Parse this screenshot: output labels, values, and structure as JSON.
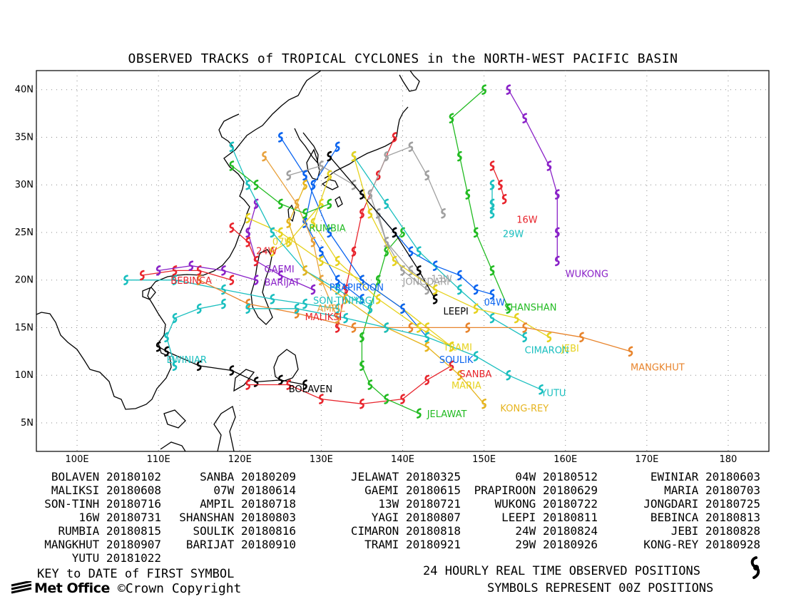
{
  "title": "OBSERVED TRACKS of TROPICAL CYCLONES in the NORTH-WEST PACIFIC BASIN",
  "map": {
    "lon_ticks": [
      "100E",
      "110E",
      "120E",
      "130E",
      "140E",
      "150E",
      "160E",
      "170E",
      "180"
    ],
    "lat_ticks": [
      "40N",
      "35N",
      "30N",
      "25N",
      "20N",
      "15N",
      "10N",
      "5N"
    ],
    "lon_range": [
      95,
      185
    ],
    "lat_range": [
      2,
      42
    ],
    "grid": "dotted"
  },
  "storms": [
    {
      "name": "BOLAVEN",
      "color": "#000000",
      "label_pos": [
        126,
        8.2
      ],
      "track": [
        [
          128,
          9
        ],
        [
          125,
          9.5
        ],
        [
          122,
          9.3
        ],
        [
          119,
          10.5
        ],
        [
          115,
          11
        ],
        [
          111,
          12.5
        ],
        [
          110,
          13
        ]
      ]
    },
    {
      "name": "SANBA",
      "color": "#e8242c",
      "label_pos": [
        147,
        9.8
      ],
      "track": [
        [
          146,
          11
        ],
        [
          143,
          9.5
        ],
        [
          140,
          7.5
        ],
        [
          135,
          7
        ],
        [
          130,
          7.5
        ],
        [
          126,
          9
        ],
        [
          121,
          9
        ]
      ]
    },
    {
      "name": "JELAWAT",
      "color": "#22bb22",
      "label_pos": [
        143,
        5.6
      ],
      "track": [
        [
          142,
          6
        ],
        [
          138,
          7.5
        ],
        [
          136,
          9
        ],
        [
          135,
          11
        ],
        [
          135,
          14
        ],
        [
          136,
          17
        ],
        [
          137,
          20
        ],
        [
          138,
          23
        ],
        [
          140,
          25
        ]
      ]
    },
    {
      "name": "04W",
      "color": "#0a64f0",
      "label_pos": [
        150,
        17.3
      ],
      "track": [
        [
          151,
          18.5
        ],
        [
          149,
          19
        ],
        [
          147,
          20.5
        ],
        [
          144,
          21.5
        ],
        [
          141,
          23
        ],
        [
          139,
          25
        ],
        [
          137,
          27
        ]
      ]
    },
    {
      "name": "EWINIAR",
      "color": "#1abfbf",
      "label_pos": [
        111,
        11.3
      ],
      "track": [
        [
          118,
          17.5
        ],
        [
          115,
          17
        ],
        [
          112,
          16
        ],
        [
          111,
          14
        ],
        [
          112,
          11
        ]
      ]
    },
    {
      "name": "MALIKSI",
      "color": "#e8242c",
      "label_pos": [
        128,
        15.8
      ],
      "track": [
        [
          132,
          15
        ],
        [
          133,
          19
        ],
        [
          134,
          23
        ],
        [
          135,
          27
        ],
        [
          137,
          31
        ],
        [
          139,
          35
        ]
      ]
    },
    {
      "name": "07W",
      "color": "#e6d21e",
      "label_pos": [
        124,
        23.7
      ],
      "track": [
        [
          124,
          23
        ],
        [
          126,
          24
        ],
        [
          128,
          26
        ],
        [
          130,
          28
        ]
      ]
    },
    {
      "name": "GAEMI",
      "color": "#8a22c8",
      "label_pos": [
        123,
        20.8
      ],
      "track": [
        [
          129,
          19
        ],
        [
          125,
          20.5
        ],
        [
          122,
          22
        ],
        [
          121,
          25
        ],
        [
          122,
          28
        ]
      ]
    },
    {
      "name": "PRAPIROON",
      "color": "#0a64f0",
      "label_pos": [
        131,
        18.9
      ],
      "track": [
        [
          135,
          18
        ],
        [
          132,
          20
        ],
        [
          130,
          23
        ],
        [
          128,
          26
        ],
        [
          129,
          30
        ],
        [
          132,
          34
        ]
      ]
    },
    {
      "name": "MARIA",
      "color": "#e6d21e",
      "label_pos": [
        146,
        8.6
      ],
      "track": [
        [
          146,
          13
        ],
        [
          143,
          15
        ],
        [
          140,
          17
        ],
        [
          135,
          20
        ],
        [
          130,
          22
        ],
        [
          125,
          25
        ],
        [
          121,
          26.5
        ]
      ]
    },
    {
      "name": "SON-TINH",
      "color": "#1abfbf",
      "label_pos": [
        129,
        17.5
      ],
      "track": [
        [
          132,
          17
        ],
        [
          128,
          17.5
        ],
        [
          124,
          18
        ],
        [
          118,
          19
        ],
        [
          112,
          20
        ],
        [
          106,
          20
        ]
      ]
    },
    {
      "name": "AMPIL",
      "color": "#e8a23e",
      "label_pos": [
        129.5,
        16.7
      ],
      "track": [
        [
          132,
          16
        ],
        [
          130,
          20
        ],
        [
          129,
          24
        ],
        [
          127,
          28
        ],
        [
          123,
          33
        ]
      ]
    },
    {
      "name": "13W",
      "color": "#a0a0a0",
      "label_pos": [
        143.5,
        19.8
      ],
      "track": [
        [
          143,
          19
        ],
        [
          140,
          21
        ],
        [
          138,
          24
        ],
        [
          136,
          29
        ],
        [
          138,
          33
        ],
        [
          141,
          34
        ],
        [
          143,
          31
        ],
        [
          145,
          27
        ]
      ]
    },
    {
      "name": "WUKONG",
      "color": "#8a22c8",
      "label_pos": [
        160,
        20.3
      ],
      "track": [
        [
          159,
          22
        ],
        [
          159,
          25
        ],
        [
          159,
          29
        ],
        [
          158,
          32
        ],
        [
          155,
          37
        ],
        [
          153,
          40
        ]
      ]
    },
    {
      "name": "JONGDARI",
      "color": "#a0a0a0",
      "label_pos": [
        140,
        19.5
      ],
      "track": [
        [
          144,
          19
        ],
        [
          141,
          21
        ],
        [
          138,
          24
        ],
        [
          137,
          27
        ],
        [
          134,
          30
        ],
        [
          130,
          32
        ],
        [
          126,
          31
        ]
      ]
    },
    {
      "name": "16W",
      "color": "#e8242c",
      "label_pos": [
        154,
        26
      ],
      "track": [
        [
          152.5,
          28.5
        ],
        [
          152,
          30
        ],
        [
          151,
          32
        ]
      ]
    },
    {
      "name": "SHANSHAN",
      "color": "#22bb22",
      "label_pos": [
        152.5,
        16.8
      ],
      "track": [
        [
          153,
          17
        ],
        [
          151,
          21
        ],
        [
          149,
          25
        ],
        [
          148,
          29
        ],
        [
          147,
          33
        ],
        [
          146,
          37
        ],
        [
          150,
          40
        ]
      ]
    },
    {
      "name": "YAGI",
      "color": "#1abfbf",
      "label_pos": [
        134,
        17.5
      ],
      "track": [
        [
          136,
          17
        ],
        [
          132,
          19
        ],
        [
          128,
          21
        ],
        [
          124,
          25
        ],
        [
          121,
          30
        ],
        [
          119,
          34
        ]
      ]
    },
    {
      "name": "LEEPI",
      "color": "#000000",
      "label_pos": [
        145,
        16.4
      ],
      "track": [
        [
          144,
          18
        ],
        [
          142,
          21
        ],
        [
          139,
          25
        ],
        [
          135,
          29
        ],
        [
          131,
          33
        ]
      ]
    },
    {
      "name": "BEBINCA",
      "color": "#e8242c",
      "label_pos": [
        111.5,
        19.6
      ],
      "track": [
        [
          119,
          20
        ],
        [
          115,
          21
        ],
        [
          112,
          21
        ],
        [
          108,
          20.5
        ]
      ]
    },
    {
      "name": "RUMBIA",
      "color": "#22bb22",
      "label_pos": [
        128.5,
        25.1
      ],
      "track": [
        [
          131,
          28
        ],
        [
          128,
          27
        ],
        [
          125,
          28
        ],
        [
          122,
          30
        ],
        [
          119,
          32
        ]
      ]
    },
    {
      "name": "SOULIK",
      "color": "#0a64f0",
      "label_pos": [
        144.5,
        11.3
      ],
      "track": [
        [
          143,
          14
        ],
        [
          140,
          17
        ],
        [
          135,
          20
        ],
        [
          131,
          25
        ],
        [
          128,
          31
        ],
        [
          125,
          35
        ]
      ]
    },
    {
      "name": "CIMARON",
      "color": "#1abfbf",
      "label_pos": [
        155,
        12.3
      ],
      "track": [
        [
          155,
          14
        ],
        [
          151,
          16
        ],
        [
          147,
          19
        ],
        [
          142,
          23
        ],
        [
          138,
          28
        ],
        [
          134,
          33
        ]
      ]
    },
    {
      "name": "24W",
      "color": "#e8242c",
      "label_pos": [
        122,
        22.7
      ],
      "track": [
        [
          122,
          22
        ],
        [
          121,
          24
        ],
        [
          119,
          25.5
        ]
      ]
    },
    {
      "name": "JEBI",
      "color": "#e6d21e",
      "label_pos": [
        159.5,
        12.5
      ],
      "track": [
        [
          158,
          14
        ],
        [
          154,
          16
        ],
        [
          149,
          17
        ],
        [
          144,
          19
        ],
        [
          139,
          22
        ],
        [
          136,
          27
        ],
        [
          134,
          33
        ]
      ]
    },
    {
      "name": "MANGKHUT",
      "color": "#e8842c",
      "label_pos": [
        168,
        10.5
      ],
      "track": [
        [
          168,
          12.5
        ],
        [
          162,
          14
        ],
        [
          155,
          15
        ],
        [
          148,
          15
        ],
        [
          141,
          15
        ],
        [
          134,
          15
        ],
        [
          127,
          16.5
        ],
        [
          121,
          17.5
        ],
        [
          115,
          20
        ]
      ]
    },
    {
      "name": "BARIJAT",
      "color": "#8a22c8",
      "label_pos": [
        123,
        19.4
      ],
      "track": [
        [
          122,
          20
        ],
        [
          118,
          21
        ],
        [
          114,
          21.5
        ],
        [
          110,
          21
        ]
      ]
    },
    {
      "name": "TRAMI",
      "color": "#e6d21e",
      "label_pos": [
        145,
        12.6
      ],
      "track": [
        [
          146,
          13
        ],
        [
          142,
          15
        ],
        [
          137,
          18
        ],
        [
          132,
          22
        ],
        [
          129,
          26
        ],
        [
          131,
          31
        ]
      ]
    },
    {
      "name": "29W",
      "color": "#1abfbf",
      "label_pos": [
        152.3,
        24.5
      ],
      "track": [
        [
          151,
          27
        ],
        [
          151,
          28
        ],
        [
          151,
          30
        ]
      ]
    },
    {
      "name": "KONG-REY",
      "color": "#e6b41e",
      "label_pos": [
        152,
        6.2
      ],
      "track": [
        [
          150,
          7
        ],
        [
          147,
          10
        ],
        [
          143,
          13
        ],
        [
          138,
          15
        ],
        [
          133,
          18
        ],
        [
          128,
          21
        ],
        [
          126,
          26
        ],
        [
          128,
          30
        ]
      ]
    },
    {
      "name": "YUTU",
      "color": "#1abfbf",
      "label_pos": [
        157,
        7.8
      ],
      "track": [
        [
          157,
          8.5
        ],
        [
          153,
          10
        ],
        [
          149,
          12
        ],
        [
          143,
          14
        ],
        [
          138,
          15
        ],
        [
          133,
          16
        ],
        [
          127,
          17
        ],
        [
          121,
          17
        ]
      ]
    }
  ],
  "legend": [
    [
      "BOLAVEN 20180102",
      "SANBA 20180209",
      "JELAWAT 20180325",
      "04W 20180512",
      "EWINIAR 20180603"
    ],
    [
      "MALIKSI 20180608",
      "07W 20180614",
      "GAEMI 20180615",
      "PRAPIROON 20180629",
      "MARIA 20180703"
    ],
    [
      "SON-TINH 20180716",
      "AMPIL 20180718",
      "13W 20180721",
      "WUKONG 20180722",
      "JONGDARI 20180725"
    ],
    [
      "16W 20180731",
      "SHANSHAN 20180803",
      "YAGI 20180807",
      "LEEPI 20180811",
      "BEBINCA 20180813"
    ],
    [
      "RUMBIA 20180815",
      "SOULIK 20180816",
      "CIMARON 20180818",
      "24W 20180824",
      "JEBI 20180828"
    ],
    [
      "MANGKHUT 20180907",
      "BARIJAT 20180910",
      "TRAMI 20180921",
      "29W 20180926",
      "KONG-REY 20180928"
    ],
    [
      "YUTU 20181022",
      "",
      "",
      "",
      ""
    ]
  ],
  "footer": {
    "key_text": "KEY to DATE of FIRST SYMBOL",
    "positions_text": "24 HOURLY REAL TIME OBSERVED POSITIONS",
    "symbols_text": "SYMBOLS REPRESENT 00Z POSITIONS",
    "brand": "Met Office",
    "copyright": "©Crown Copyright"
  }
}
